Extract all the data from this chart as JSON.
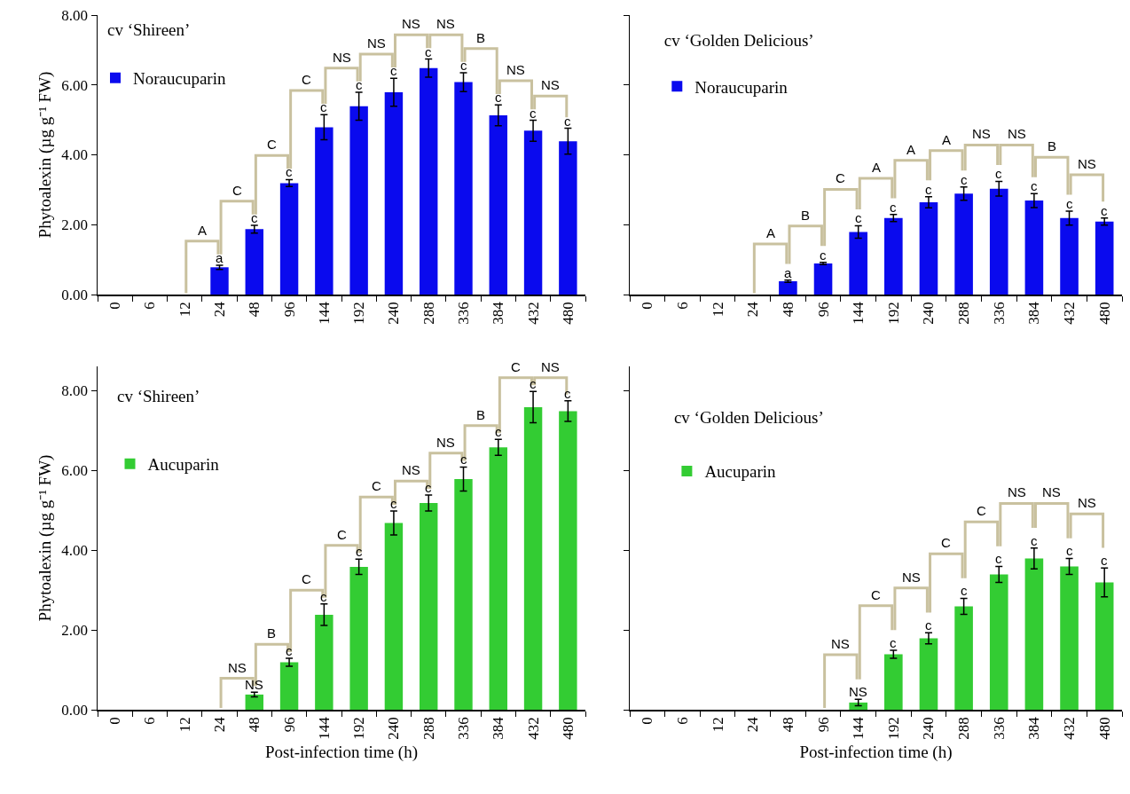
{
  "chart_data": [
    {
      "type": "bar",
      "title": "cv ‘Shireen’",
      "ylabel": "Phytoalexin (µg g⁻¹ FW)",
      "legend": "top left",
      "categories": [
        "0",
        "6",
        "12",
        "24",
        "48",
        "96",
        "144",
        "192",
        "240",
        "288",
        "336",
        "384",
        "432",
        "480"
      ],
      "series": [
        {
          "name": "Noraucuparin",
          "color": "#0a0aee",
          "values": [
            0,
            0,
            0,
            0.78,
            1.87,
            3.19,
            4.79,
            5.39,
            5.79,
            6.48,
            6.08,
            5.13,
            4.69,
            4.39
          ],
          "errors": [
            null,
            null,
            null,
            0.06,
            0.11,
            0.1,
            0.36,
            0.4,
            0.4,
            0.26,
            0.27,
            0.3,
            0.3,
            0.37
          ],
          "value_labels": [
            null,
            null,
            null,
            "a",
            "c",
            "c",
            "c",
            "c",
            "c",
            "c",
            "c",
            "c",
            "c",
            "c"
          ]
        }
      ],
      "ylim": [
        0,
        8
      ],
      "yticks": [
        {
          "value": 0,
          "label": "0.00"
        },
        {
          "value": 2,
          "label": "2.00"
        },
        {
          "value": 4,
          "label": "4.00"
        },
        {
          "value": 6,
          "label": "6.00"
        },
        {
          "value": 8,
          "label": "8.00"
        }
      ],
      "annotations": [
        "A",
        "C",
        "C",
        "C",
        "NS",
        "NS",
        "NS",
        "NS",
        "B",
        "NS",
        "NS"
      ]
    },
    {
      "type": "bar",
      "title": "cv ‘Golden Delicious’",
      "legend": "top left",
      "tick_labels": "x",
      "categories": [
        "0",
        "6",
        "12",
        "24",
        "48",
        "96",
        "144",
        "192",
        "240",
        "288",
        "336",
        "384",
        "432",
        "480"
      ],
      "series": [
        {
          "name": "Noraucuparin",
          "color": "#0a0aee",
          "values": [
            0,
            0,
            0,
            0,
            0.38,
            0.89,
            1.79,
            2.19,
            2.64,
            2.89,
            3.03,
            2.69,
            2.19,
            2.09
          ],
          "errors": [
            null,
            null,
            null,
            null,
            0.03,
            0.03,
            0.18,
            0.1,
            0.16,
            0.19,
            0.21,
            0.2,
            0.2,
            0.1
          ],
          "value_labels": [
            null,
            null,
            null,
            null,
            "a",
            "c",
            "c",
            "c",
            "c",
            "c",
            "c",
            "c",
            "c",
            "c"
          ]
        }
      ],
      "ylim": [
        0,
        8
      ],
      "yticks": [
        {
          "value": 0,
          "label": null
        },
        {
          "value": 2,
          "label": null
        },
        {
          "value": 4,
          "label": null
        },
        {
          "value": 6,
          "label": null
        },
        {
          "value": 8,
          "label": null
        }
      ],
      "annotations": [
        "A",
        "B",
        "C",
        "A",
        "A",
        "A",
        "NS",
        "NS",
        "B",
        "NS"
      ]
    },
    {
      "type": "bar",
      "title": "cv ‘Shireen’",
      "ylabel": "Phytoalexin (µg g⁻¹ FW)",
      "xlabel": "Post-infection time (h)",
      "legend": "top left",
      "categories": [
        "0",
        "6",
        "12",
        "24",
        "48",
        "96",
        "144",
        "192",
        "240",
        "288",
        "336",
        "384",
        "432",
        "480"
      ],
      "series": [
        {
          "name": "Aucuparin",
          "color": "#33cc33",
          "values": [
            0,
            0,
            0,
            0,
            0.38,
            1.19,
            2.38,
            3.58,
            4.68,
            5.18,
            5.78,
            6.57,
            7.58,
            7.48
          ],
          "errors": [
            null,
            null,
            null,
            null,
            0.06,
            0.1,
            0.27,
            0.19,
            0.3,
            0.2,
            0.3,
            0.2,
            0.39,
            0.26
          ],
          "value_labels": [
            null,
            null,
            null,
            null,
            "NS",
            "c",
            "c",
            "c",
            "c",
            "c",
            "c",
            "c",
            "c",
            "c"
          ]
        }
      ],
      "ylim": [
        0,
        8.6
      ],
      "yticks": [
        {
          "value": 0,
          "label": "0.00"
        },
        {
          "value": 2,
          "label": "2.00"
        },
        {
          "value": 4,
          "label": "4.00"
        },
        {
          "value": 6,
          "label": "6.00"
        },
        {
          "value": 8,
          "label": "8.00"
        }
      ],
      "annotations": [
        "NS",
        "B",
        "C",
        "C",
        "C",
        "NS",
        "NS",
        "B",
        "C",
        "NS"
      ]
    },
    {
      "type": "bar",
      "title": "cv ‘Golden Delicious’",
      "xlabel": "Post-infection time (h)",
      "legend": "top left",
      "tick_labels": "x",
      "categories": [
        "0",
        "6",
        "12",
        "24",
        "48",
        "96",
        "144",
        "192",
        "240",
        "288",
        "336",
        "384",
        "432",
        "480"
      ],
      "series": [
        {
          "name": "Aucuparin",
          "color": "#33cc33",
          "values": [
            0,
            0,
            0,
            0,
            0,
            0,
            0.18,
            1.39,
            1.79,
            2.59,
            3.39,
            3.79,
            3.59,
            3.19
          ],
          "errors": [
            null,
            null,
            null,
            null,
            null,
            null,
            0.08,
            0.1,
            0.14,
            0.2,
            0.2,
            0.26,
            0.2,
            0.36
          ],
          "value_labels": [
            null,
            null,
            null,
            null,
            null,
            null,
            "NS",
            "c",
            "c",
            "c",
            "c",
            "c",
            "c",
            "c"
          ]
        }
      ],
      "ylim": [
        0,
        8.6
      ],
      "yticks": [
        {
          "value": 0,
          "label": null
        },
        {
          "value": 2,
          "label": null
        },
        {
          "value": 4,
          "label": null
        },
        {
          "value": 6,
          "label": null
        },
        {
          "value": 8,
          "label": null
        }
      ],
      "annotations": [
        "NS",
        "C",
        "NS",
        "C",
        "C",
        "NS",
        "NS",
        "NS"
      ]
    }
  ]
}
